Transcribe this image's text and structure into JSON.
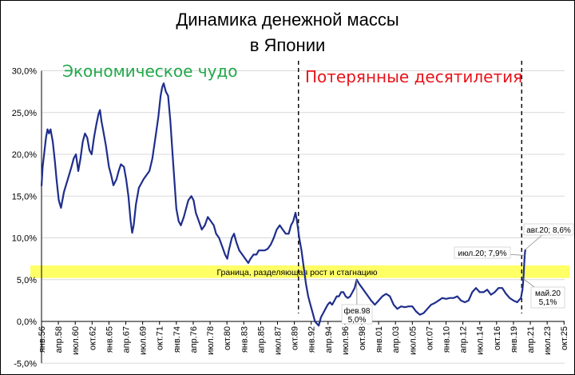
{
  "chart_data": {
    "type": "line",
    "title_line1": "Динамика денежной массы",
    "title_line2": "в Японии",
    "y_ticks": [
      "30,0%",
      "25,0%",
      "20,0%",
      "15,0%",
      "10,0%",
      "5,0%",
      "0,0%",
      "-5,0%"
    ],
    "y_tick_values": [
      30,
      25,
      20,
      15,
      10,
      5,
      0,
      -5
    ],
    "ylim": [
      -5,
      30
    ],
    "x_range": [
      1956.0,
      2025.83
    ],
    "x_ticks": [
      "янв.56",
      "апр.58",
      "июл.60",
      "окт.62",
      "янв.65",
      "апр.67",
      "июл.69",
      "окт.71",
      "янв.74",
      "апр.76",
      "июл.78",
      "окт.80",
      "янв.83",
      "апр.85",
      "июл.87",
      "окт.89",
      "янв.92",
      "апр.94",
      "июл.96",
      "окт.98",
      "янв.01",
      "апр.03",
      "июл.05",
      "окт.07",
      "янв.10",
      "апр.12",
      "июл.14",
      "окт.16",
      "янв.19",
      "апр.21",
      "июл.23",
      "окт.25"
    ],
    "x_tick_values": [
      1956.0,
      1958.25,
      1960.5,
      1962.75,
      1965.0,
      1967.25,
      1969.5,
      1971.75,
      1974.0,
      1976.25,
      1978.5,
      1980.75,
      1983.0,
      1985.25,
      1987.5,
      1989.75,
      1992.0,
      1994.25,
      1996.5,
      1998.75,
      2001.0,
      2003.25,
      2005.5,
      2007.75,
      2010.0,
      2012.25,
      2014.5,
      2016.75,
      2019.0,
      2021.25,
      2023.5,
      2025.75
    ],
    "era_labels": [
      "Экономическое чудо",
      "Потерянные десятилетия"
    ],
    "dividers_x": [
      1990.3,
      2020.1
    ],
    "band": {
      "from": 5.2,
      "to": 6.7,
      "label": "Граница,  разделяющая  рост  и  стагнацию",
      "color": "#ffff66"
    },
    "line_color": "#1f2e8c",
    "accent_green": "#22a84a",
    "accent_red": "#e8141b",
    "annotations": [
      {
        "text": "фев.98",
        "text2": "5,0%",
        "x": 1998.08,
        "y": 5.0
      },
      {
        "text": "июл.20; 7,9%",
        "x": 2020.5,
        "y": 7.9
      },
      {
        "text": "авг.20; 8,6%",
        "x": 2020.58,
        "y": 8.6
      },
      {
        "text": "май.20",
        "text2": "5,1%",
        "x": 2020.33,
        "y": 5.1
      }
    ],
    "series": [
      {
        "values": [
          [
            1956.0,
            16.2
          ],
          [
            1956.15,
            18.5
          ],
          [
            1956.4,
            20.5
          ],
          [
            1956.6,
            22.0
          ],
          [
            1956.8,
            23.0
          ],
          [
            1957.0,
            22.5
          ],
          [
            1957.2,
            23.0
          ],
          [
            1957.5,
            21.5
          ],
          [
            1957.8,
            19.0
          ],
          [
            1958.0,
            17.0
          ],
          [
            1958.3,
            14.5
          ],
          [
            1958.6,
            13.6
          ],
          [
            1959.0,
            15.5
          ],
          [
            1959.5,
            17.0
          ],
          [
            1960.0,
            18.5
          ],
          [
            1960.3,
            19.5
          ],
          [
            1960.6,
            20.0
          ],
          [
            1960.9,
            18.0
          ],
          [
            1961.2,
            19.5
          ],
          [
            1961.5,
            21.5
          ],
          [
            1961.8,
            22.5
          ],
          [
            1962.1,
            22.0
          ],
          [
            1962.4,
            20.5
          ],
          [
            1962.7,
            20.0
          ],
          [
            1963.0,
            22.0
          ],
          [
            1963.3,
            23.5
          ],
          [
            1963.6,
            24.8
          ],
          [
            1963.8,
            25.3
          ],
          [
            1964.0,
            24.0
          ],
          [
            1964.3,
            22.5
          ],
          [
            1964.6,
            21.0
          ],
          [
            1965.0,
            18.5
          ],
          [
            1965.3,
            17.5
          ],
          [
            1965.6,
            16.3
          ],
          [
            1966.0,
            17.0
          ],
          [
            1966.3,
            18.0
          ],
          [
            1966.6,
            18.8
          ],
          [
            1967.0,
            18.5
          ],
          [
            1967.3,
            17.0
          ],
          [
            1967.6,
            15.0
          ],
          [
            1967.9,
            12.0
          ],
          [
            1968.1,
            10.6
          ],
          [
            1968.3,
            11.5
          ],
          [
            1968.6,
            14.0
          ],
          [
            1969.0,
            16.0
          ],
          [
            1969.3,
            16.5
          ],
          [
            1969.6,
            17.0
          ],
          [
            1970.0,
            17.5
          ],
          [
            1970.4,
            18.0
          ],
          [
            1970.8,
            19.5
          ],
          [
            1971.2,
            22.0
          ],
          [
            1971.6,
            24.5
          ],
          [
            1971.9,
            27.0
          ],
          [
            1972.1,
            28.0
          ],
          [
            1972.3,
            28.5
          ],
          [
            1972.6,
            27.5
          ],
          [
            1972.9,
            27.0
          ],
          [
            1973.2,
            24.0
          ],
          [
            1973.5,
            20.0
          ],
          [
            1973.8,
            16.0
          ],
          [
            1974.0,
            13.5
          ],
          [
            1974.3,
            12.0
          ],
          [
            1974.6,
            11.5
          ],
          [
            1975.0,
            12.5
          ],
          [
            1975.3,
            13.5
          ],
          [
            1975.6,
            14.5
          ],
          [
            1976.0,
            15.0
          ],
          [
            1976.3,
            14.5
          ],
          [
            1976.6,
            13.0
          ],
          [
            1977.0,
            12.0
          ],
          [
            1977.4,
            11.0
          ],
          [
            1977.8,
            11.5
          ],
          [
            1978.2,
            12.5
          ],
          [
            1978.6,
            12.0
          ],
          [
            1979.0,
            11.5
          ],
          [
            1979.3,
            10.5
          ],
          [
            1979.7,
            10.0
          ],
          [
            1980.1,
            9.0
          ],
          [
            1980.5,
            8.0
          ],
          [
            1980.8,
            7.5
          ],
          [
            1981.0,
            8.5
          ],
          [
            1981.4,
            10.0
          ],
          [
            1981.7,
            10.5
          ],
          [
            1982.0,
            9.5
          ],
          [
            1982.4,
            8.5
          ],
          [
            1982.8,
            8.0
          ],
          [
            1983.2,
            7.5
          ],
          [
            1983.6,
            7.0
          ],
          [
            1983.9,
            7.5
          ],
          [
            1984.3,
            8.0
          ],
          [
            1984.7,
            8.0
          ],
          [
            1985.0,
            8.5
          ],
          [
            1985.4,
            8.5
          ],
          [
            1985.8,
            8.5
          ],
          [
            1986.2,
            8.7
          ],
          [
            1986.6,
            9.2
          ],
          [
            1987.0,
            10.0
          ],
          [
            1987.4,
            11.0
          ],
          [
            1987.8,
            11.5
          ],
          [
            1988.2,
            11.0
          ],
          [
            1988.6,
            10.5
          ],
          [
            1989.0,
            10.5
          ],
          [
            1989.3,
            11.5
          ],
          [
            1989.6,
            12.0
          ],
          [
            1989.9,
            13.0
          ],
          [
            1990.1,
            12.0
          ],
          [
            1990.4,
            10.0
          ],
          [
            1990.7,
            8.5
          ],
          [
            1991.0,
            6.5
          ],
          [
            1991.3,
            4.5
          ],
          [
            1991.6,
            3.0
          ],
          [
            1991.9,
            2.0
          ],
          [
            1992.2,
            1.0
          ],
          [
            1992.5,
            0.0
          ],
          [
            1992.8,
            -0.3
          ],
          [
            1993.0,
            -0.5
          ],
          [
            1993.3,
            0.5
          ],
          [
            1993.6,
            1.0
          ],
          [
            1993.9,
            1.5
          ],
          [
            1994.2,
            2.0
          ],
          [
            1994.5,
            2.3
          ],
          [
            1994.8,
            2.0
          ],
          [
            1995.1,
            2.5
          ],
          [
            1995.4,
            3.0
          ],
          [
            1995.7,
            3.0
          ],
          [
            1996.0,
            3.5
          ],
          [
            1996.3,
            3.5
          ],
          [
            1996.6,
            3.0
          ],
          [
            1996.9,
            2.8
          ],
          [
            1997.2,
            3.0
          ],
          [
            1997.5,
            3.5
          ],
          [
            1997.8,
            4.0
          ],
          [
            1998.08,
            5.0
          ],
          [
            1998.4,
            4.5
          ],
          [
            1998.8,
            4.0
          ],
          [
            1999.2,
            3.5
          ],
          [
            1999.6,
            3.0
          ],
          [
            2000.0,
            2.5
          ],
          [
            2000.5,
            2.0
          ],
          [
            2001.0,
            2.5
          ],
          [
            2001.5,
            3.0
          ],
          [
            2002.0,
            3.3
          ],
          [
            2002.5,
            3.0
          ],
          [
            2003.0,
            2.0
          ],
          [
            2003.5,
            1.5
          ],
          [
            2004.0,
            1.8
          ],
          [
            2004.5,
            1.7
          ],
          [
            2005.0,
            1.8
          ],
          [
            2005.5,
            1.8
          ],
          [
            2006.0,
            1.2
          ],
          [
            2006.5,
            0.8
          ],
          [
            2007.0,
            1.0
          ],
          [
            2007.5,
            1.5
          ],
          [
            2008.0,
            2.0
          ],
          [
            2008.5,
            2.2
          ],
          [
            2009.0,
            2.5
          ],
          [
            2009.5,
            2.8
          ],
          [
            2010.0,
            2.7
          ],
          [
            2010.5,
            2.8
          ],
          [
            2011.0,
            2.8
          ],
          [
            2011.5,
            3.0
          ],
          [
            2012.0,
            2.5
          ],
          [
            2012.5,
            2.3
          ],
          [
            2013.0,
            2.5
          ],
          [
            2013.5,
            3.5
          ],
          [
            2014.0,
            4.0
          ],
          [
            2014.5,
            3.5
          ],
          [
            2015.0,
            3.5
          ],
          [
            2015.5,
            3.8
          ],
          [
            2016.0,
            3.2
          ],
          [
            2016.5,
            3.5
          ],
          [
            2017.0,
            4.0
          ],
          [
            2017.5,
            4.0
          ],
          [
            2018.0,
            3.3
          ],
          [
            2018.5,
            2.8
          ],
          [
            2019.0,
            2.5
          ],
          [
            2019.5,
            2.3
          ],
          [
            2020.0,
            2.8
          ],
          [
            2020.2,
            3.8
          ],
          [
            2020.33,
            5.1
          ],
          [
            2020.5,
            7.9
          ],
          [
            2020.58,
            8.6
          ]
        ]
      }
    ]
  }
}
